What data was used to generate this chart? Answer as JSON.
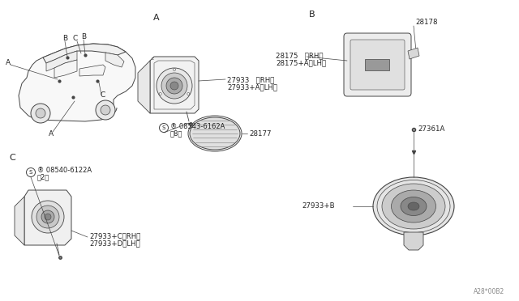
{
  "bg_color": "#ffffff",
  "line_color": "#444444",
  "text_color": "#222222",
  "fig_width": 6.4,
  "fig_height": 3.72,
  "dpi": 100,
  "footer_text": "A28*00B2",
  "labels": {
    "27933_RH": "27933   （RH）",
    "27933A_LH": "27933+A（LH）",
    "08543_6162A_line1": "® 08543-6162A",
    "08543_6162A_line2": "（8）",
    "28177": "28177",
    "28175_RH": "28175   （RH）",
    "28175A_LH": "28175+A（LH）",
    "28178": "28178",
    "27361A": "27361A",
    "27933B": "27933+B",
    "08540_6122A_line1": "® 08540-6122A",
    "08540_6122A_line2": "（2）",
    "27933C_RH": "27933+C（RH）",
    "27933D_LH": "27933+D（LH）",
    "sec_A": "A",
    "sec_B": "B",
    "sec_C": "C"
  }
}
